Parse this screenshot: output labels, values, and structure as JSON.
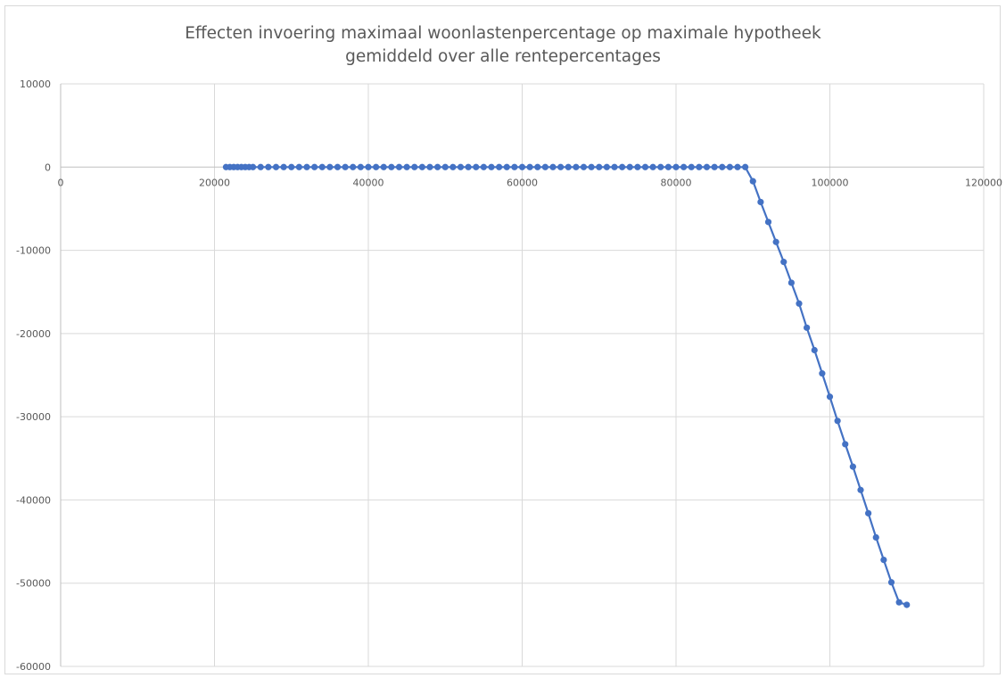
{
  "chart_data": {
    "type": "scatter",
    "title": "Effecten invoering maximaal woonlastenpercentage op maximale hypotheek",
    "subtitle": "gemiddeld over alle rentepercentages",
    "xlabel": "",
    "ylabel": "",
    "xlim": [
      0,
      120000
    ],
    "ylim": [
      -60000,
      10000
    ],
    "x_ticks": [
      0,
      20000,
      40000,
      60000,
      80000,
      100000,
      120000
    ],
    "y_ticks": [
      10000,
      0,
      -10000,
      -20000,
      -30000,
      -40000,
      -50000,
      -60000
    ],
    "grid": true,
    "legend": "none",
    "colors": {
      "series": "#4472c4",
      "grid": "#d9d9d9",
      "axis": "#bfbfbf",
      "text": "#595959"
    },
    "series": [
      {
        "x": [
          21500,
          22000,
          22500,
          23000,
          23500,
          24000,
          24500,
          25000,
          26000,
          27000,
          28000,
          29000,
          30000,
          31000,
          32000,
          33000,
          34000,
          35000,
          36000,
          37000,
          38000,
          39000,
          40000,
          41000,
          42000,
          43000,
          44000,
          45000,
          46000,
          47000,
          48000,
          49000,
          50000,
          51000,
          52000,
          53000,
          54000,
          55000,
          56000,
          57000,
          58000,
          59000,
          60000,
          61000,
          62000,
          63000,
          64000,
          65000,
          66000,
          67000,
          68000,
          69000,
          70000,
          71000,
          72000,
          73000,
          74000,
          75000,
          76000,
          77000,
          78000,
          79000,
          80000,
          81000,
          82000,
          83000,
          84000,
          85000,
          86000,
          87000,
          88000,
          89000,
          90000,
          91000,
          92000,
          93000,
          94000,
          95000,
          96000,
          97000,
          98000,
          99000,
          100000,
          101000,
          102000,
          103000,
          104000,
          105000,
          106000,
          107000,
          108000,
          109000,
          110000
        ],
        "y": [
          0,
          0,
          0,
          0,
          0,
          0,
          0,
          0,
          0,
          0,
          0,
          0,
          0,
          0,
          0,
          0,
          0,
          0,
          0,
          0,
          0,
          0,
          0,
          0,
          0,
          0,
          0,
          0,
          0,
          0,
          0,
          0,
          0,
          0,
          0,
          0,
          0,
          0,
          0,
          0,
          0,
          0,
          0,
          0,
          0,
          0,
          0,
          0,
          0,
          0,
          0,
          0,
          0,
          0,
          0,
          0,
          0,
          0,
          0,
          0,
          0,
          0,
          0,
          0,
          0,
          0,
          0,
          0,
          0,
          0,
          0,
          0,
          -1700,
          -4200,
          -6600,
          -9000,
          -11400,
          -13900,
          -16400,
          -19300,
          -22000,
          -24800,
          -27600,
          -30500,
          -33300,
          -36000,
          -38800,
          -41600,
          -44500,
          -47200,
          -49900,
          -52300,
          -52600
        ]
      }
    ]
  }
}
